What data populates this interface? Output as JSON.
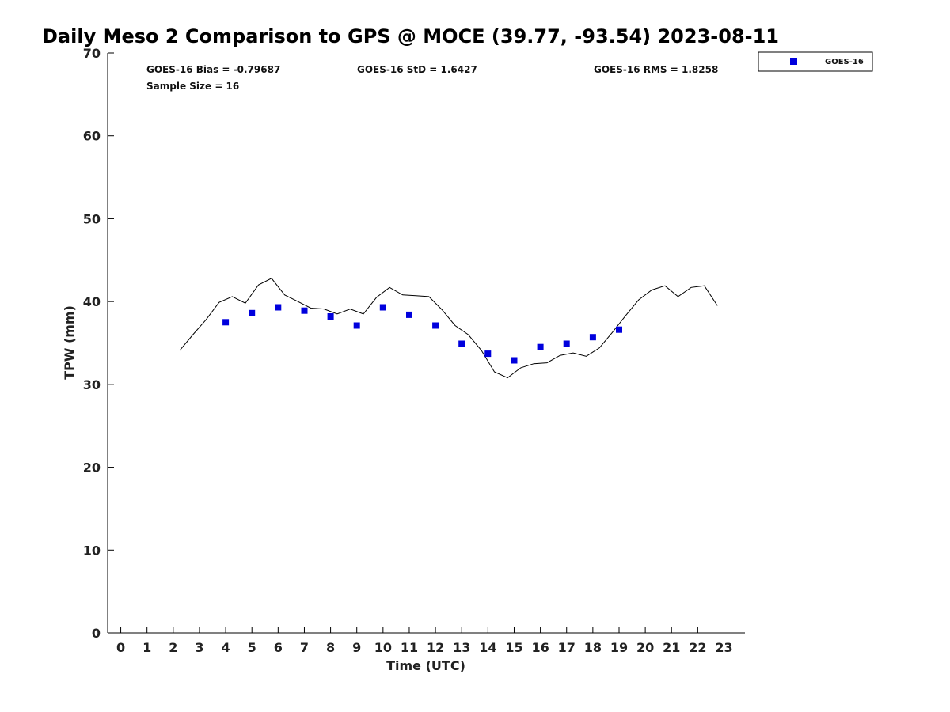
{
  "chart_data": {
    "type": "scatter",
    "title": "Daily Meso 2 Comparison to GPS @ MOCE (39.77, -93.54) 2023-08-11",
    "xlabel": "Time (UTC)",
    "ylabel": "TPW (mm)",
    "xlim": [
      -0.5,
      23.8
    ],
    "ylim": [
      0,
      70
    ],
    "x_ticks": [
      "0",
      "1",
      "2",
      "3",
      "4",
      "5",
      "6",
      "7",
      "8",
      "9",
      "10",
      "11",
      "12",
      "13",
      "14",
      "15",
      "16",
      "17",
      "18",
      "19",
      "20",
      "21",
      "22",
      "23"
    ],
    "y_ticks": [
      "0",
      "10",
      "20",
      "30",
      "40",
      "50",
      "60",
      "70"
    ],
    "grid": false,
    "legend_position": "top-right",
    "stats": {
      "bias": "GOES-16 Bias = -0.79687",
      "std": "GOES-16 StD = 1.6427",
      "rms": "GOES-16 RMS = 1.8258",
      "sample": "Sample Size = 16"
    },
    "series": [
      {
        "name": "GOES-16",
        "kind": "scatter",
        "color": "#0000dd",
        "marker": "square",
        "x": [
          4,
          5,
          6,
          7,
          8,
          9,
          10,
          11,
          12,
          13,
          14,
          15,
          16,
          17,
          18,
          19
        ],
        "y": [
          37.5,
          38.6,
          39.3,
          38.9,
          38.2,
          37.1,
          39.3,
          38.4,
          37.1,
          34.9,
          33.7,
          32.9,
          34.5,
          34.9,
          35.7,
          36.6
        ]
      },
      {
        "kind": "line",
        "color": "#000000",
        "x": [
          2.25,
          2.75,
          3.25,
          3.75,
          4.25,
          4.75,
          5.25,
          5.75,
          6.25,
          6.75,
          7.25,
          7.75,
          8.25,
          8.75,
          9.25,
          9.75,
          10.25,
          10.75,
          11.25,
          11.75,
          12.25,
          12.75,
          13.25,
          13.75,
          14.25,
          14.75,
          15.25,
          15.75,
          16.25,
          16.75,
          17.25,
          17.75,
          18.25,
          18.75,
          19.25,
          19.75,
          20.25,
          20.75,
          21.25,
          21.75,
          22.25,
          22.75
        ],
        "y": [
          34.1,
          36.0,
          37.8,
          39.9,
          40.6,
          39.8,
          42.0,
          42.8,
          40.8,
          40.0,
          39.2,
          39.1,
          38.5,
          39.1,
          38.5,
          40.5,
          41.7,
          40.8,
          40.7,
          40.6,
          39.0,
          37.1,
          36.0,
          34.1,
          31.5,
          30.8,
          32.0,
          32.5,
          32.6,
          33.5,
          33.8,
          33.4,
          34.4,
          36.3,
          38.3,
          40.2,
          41.4,
          41.9,
          40.6,
          41.7,
          41.9,
          39.5
        ]
      }
    ]
  }
}
